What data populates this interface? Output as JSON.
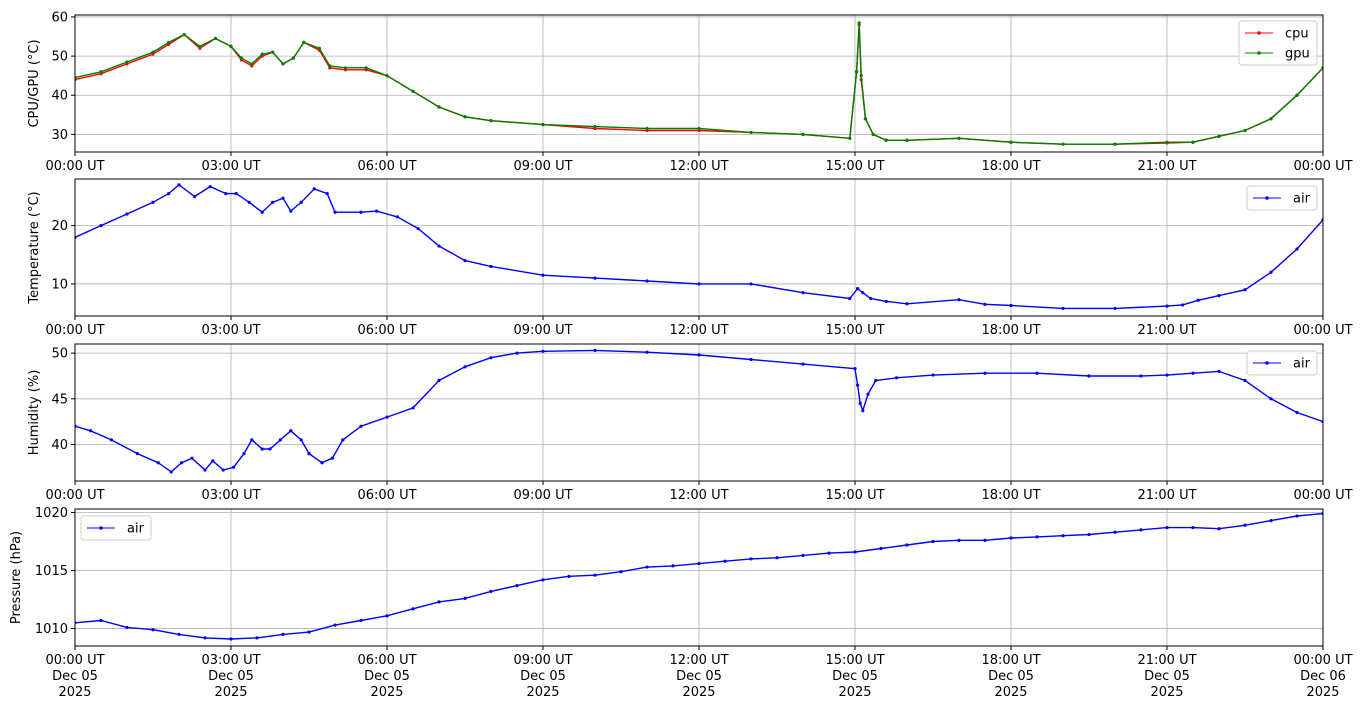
{
  "colors": {
    "cpu": "#ff0000",
    "gpu": "#008000",
    "air": "#0000ff",
    "grid": "#b0b0b0",
    "legend_border": "#cccccc"
  },
  "chart_data": [
    {
      "type": "line",
      "ylabel": "CPU/GPU (°C)",
      "xlim": [
        0,
        24
      ],
      "ylim": [
        25.5,
        60.5
      ],
      "yticks": [
        30,
        40,
        50,
        60
      ],
      "xtick_labels": [
        "00:00 UT",
        "03:00 UT",
        "06:00 UT",
        "09:00 UT",
        "12:00 UT",
        "15:00 UT",
        "18:00 UT",
        "21:00 UT",
        "00:00 UT"
      ],
      "grid": true,
      "legend": "top-right",
      "series": [
        {
          "name": "cpu",
          "color": "red",
          "x": [
            0,
            0.5,
            1,
            1.5,
            1.8,
            2.1,
            2.4,
            2.7,
            3.0,
            3.2,
            3.4,
            3.6,
            3.8,
            4.0,
            4.2,
            4.4,
            4.7,
            4.9,
            5.2,
            5.6,
            6.0,
            6.5,
            7.0,
            7.5,
            8.0,
            9.0,
            10.0,
            11.0,
            12.0,
            13.0,
            14.0,
            14.9,
            15.03,
            15.08,
            15.12,
            15.2,
            15.35,
            15.6,
            16.0,
            17.0,
            18.0,
            19.0,
            20.0,
            21.0,
            21.5,
            22.0,
            22.5,
            23.0,
            23.5,
            24.0
          ],
          "y": [
            44,
            45.5,
            48,
            50.5,
            53,
            55.5,
            52,
            54.5,
            52.5,
            49,
            47.5,
            50,
            51,
            48,
            49.5,
            53.5,
            51.5,
            47,
            46.5,
            46.5,
            45,
            41,
            37,
            34.5,
            33.5,
            32.5,
            31.5,
            31,
            31,
            30.5,
            30,
            29,
            46,
            58,
            44,
            34,
            30,
            28.5,
            28.5,
            29,
            28,
            27.5,
            27.5,
            27.8,
            28,
            29.5,
            31,
            34,
            40,
            47
          ]
        },
        {
          "name": "gpu",
          "color": "green",
          "x": [
            0,
            0.5,
            1,
            1.5,
            1.8,
            2.1,
            2.4,
            2.7,
            3.0,
            3.2,
            3.4,
            3.6,
            3.8,
            4.0,
            4.2,
            4.4,
            4.7,
            4.9,
            5.2,
            5.6,
            6.0,
            6.5,
            7.0,
            7.5,
            8.0,
            9.0,
            10.0,
            11.0,
            12.0,
            13.0,
            14.0,
            14.9,
            15.03,
            15.08,
            15.12,
            15.2,
            15.35,
            15.6,
            16.0,
            17.0,
            18.0,
            19.0,
            20.0,
            21.0,
            21.5,
            22.0,
            22.5,
            23.0,
            23.5,
            24.0
          ],
          "y": [
            44.5,
            46,
            48.5,
            51,
            53.5,
            55.5,
            52.5,
            54.5,
            52.5,
            49.5,
            48,
            50.5,
            51,
            48,
            49.5,
            53.5,
            52,
            47.5,
            47,
            47,
            45,
            41,
            37,
            34.5,
            33.5,
            32.5,
            32,
            31.5,
            31.5,
            30.5,
            30,
            29,
            46,
            58.5,
            45,
            34,
            30,
            28.5,
            28.5,
            29,
            28,
            27.5,
            27.5,
            28,
            28,
            29.5,
            31,
            34,
            40,
            47
          ]
        }
      ]
    },
    {
      "type": "line",
      "ylabel": "Temperature (°C)",
      "xlim": [
        0,
        24
      ],
      "ylim": [
        4.5,
        28
      ],
      "yticks": [
        10,
        20
      ],
      "xtick_labels": [
        "00:00 UT",
        "03:00 UT",
        "06:00 UT",
        "09:00 UT",
        "12:00 UT",
        "15:00 UT",
        "18:00 UT",
        "21:00 UT",
        "00:00 UT"
      ],
      "grid": true,
      "legend": "top-right",
      "series": [
        {
          "name": "air",
          "color": "blue",
          "x": [
            0,
            0.5,
            1.0,
            1.5,
            1.8,
            2.0,
            2.3,
            2.6,
            2.9,
            3.1,
            3.35,
            3.6,
            3.8,
            4.0,
            4.15,
            4.35,
            4.6,
            4.85,
            5.0,
            5.5,
            5.8,
            6.2,
            6.6,
            7.0,
            7.5,
            8.0,
            9.0,
            10.0,
            11.0,
            12.0,
            13.0,
            14.0,
            14.9,
            15.05,
            15.15,
            15.3,
            15.6,
            16.0,
            17.0,
            17.5,
            18.0,
            19.0,
            20.0,
            21.0,
            21.3,
            21.6,
            22.0,
            22.5,
            23.0,
            23.5,
            24.0
          ],
          "y": [
            18,
            20,
            22,
            24,
            25.5,
            27,
            25,
            26.7,
            25.5,
            25.5,
            24,
            22.3,
            24,
            24.7,
            22.5,
            24,
            26.3,
            25.5,
            22.3,
            22.3,
            22.5,
            21.5,
            19.5,
            16.5,
            14,
            13,
            11.5,
            11,
            10.5,
            10,
            10,
            8.5,
            7.5,
            9.2,
            8.5,
            7.5,
            7,
            6.6,
            7.3,
            6.5,
            6.3,
            5.8,
            5.8,
            6.2,
            6.4,
            7.2,
            8,
            9,
            12,
            16,
            21
          ]
        }
      ]
    },
    {
      "type": "line",
      "ylabel": "Humidity (%)",
      "xlim": [
        0,
        24
      ],
      "ylim": [
        36,
        51
      ],
      "yticks": [
        40,
        45,
        50
      ],
      "xtick_labels": [
        "00:00 UT",
        "03:00 UT",
        "06:00 UT",
        "09:00 UT",
        "12:00 UT",
        "15:00 UT",
        "18:00 UT",
        "21:00 UT",
        "00:00 UT"
      ],
      "grid": true,
      "legend": "top-right",
      "series": [
        {
          "name": "air",
          "color": "blue",
          "x": [
            0,
            0.3,
            0.7,
            1.2,
            1.6,
            1.85,
            2.05,
            2.25,
            2.5,
            2.65,
            2.85,
            3.05,
            3.25,
            3.4,
            3.6,
            3.75,
            3.95,
            4.15,
            4.35,
            4.5,
            4.75,
            4.95,
            5.15,
            5.5,
            6.0,
            6.5,
            7.0,
            7.5,
            8.0,
            8.5,
            9.0,
            10.0,
            11.0,
            12.0,
            13.0,
            14.0,
            15.0,
            15.05,
            15.1,
            15.15,
            15.25,
            15.4,
            15.8,
            16.5,
            17.5,
            18.5,
            19.5,
            20.5,
            21.0,
            21.5,
            22.0,
            22.5,
            23.0,
            23.5,
            24.0
          ],
          "y": [
            42,
            41.5,
            40.5,
            39,
            38,
            37,
            38,
            38.5,
            37.2,
            38.2,
            37.2,
            37.5,
            39,
            40.5,
            39.5,
            39.5,
            40.5,
            41.5,
            40.5,
            39,
            38,
            38.5,
            40.5,
            42,
            43,
            44,
            47,
            48.5,
            49.5,
            50,
            50.2,
            50.3,
            50.1,
            49.8,
            49.3,
            48.8,
            48.3,
            46.5,
            44.5,
            43.7,
            45.5,
            47,
            47.3,
            47.6,
            47.8,
            47.8,
            47.5,
            47.5,
            47.6,
            47.8,
            48,
            47,
            45,
            43.5,
            42.5
          ]
        }
      ]
    },
    {
      "type": "line",
      "ylabel": "Pressure (hPa)",
      "xlim": [
        0,
        24
      ],
      "ylim": [
        1008.5,
        1020.3
      ],
      "yticks": [
        1010,
        1015,
        1020
      ],
      "xtick_labels": [
        "00:00 UT\nDec 05\n2025",
        "03:00 UT\nDec 05\n2025",
        "06:00 UT\nDec 05\n2025",
        "09:00 UT\nDec 05\n2025",
        "12:00 UT\nDec 05\n2025",
        "15:00 UT\nDec 05\n2025",
        "18:00 UT\nDec 05\n2025",
        "21:00 UT\nDec 05\n2025",
        "00:00 UT\nDec 06\n2025"
      ],
      "grid": true,
      "legend": "top-left",
      "series": [
        {
          "name": "air",
          "color": "blue",
          "x": [
            0,
            0.5,
            1.0,
            1.5,
            2.0,
            2.5,
            3.0,
            3.5,
            4.0,
            4.5,
            5.0,
            5.5,
            6.0,
            6.5,
            7.0,
            7.5,
            8.0,
            8.5,
            9.0,
            9.5,
            10.0,
            10.5,
            11.0,
            11.5,
            12.0,
            12.5,
            13.0,
            13.5,
            14.0,
            14.5,
            15.0,
            15.5,
            16.0,
            16.5,
            17.0,
            17.5,
            18.0,
            18.5,
            19.0,
            19.5,
            20.0,
            20.5,
            21.0,
            21.5,
            22.0,
            22.5,
            23.0,
            23.5,
            24.0
          ],
          "y": [
            1010.5,
            1010.7,
            1010.1,
            1009.9,
            1009.5,
            1009.2,
            1009.1,
            1009.2,
            1009.5,
            1009.7,
            1010.3,
            1010.7,
            1011.1,
            1011.7,
            1012.3,
            1012.6,
            1013.2,
            1013.7,
            1014.2,
            1014.5,
            1014.6,
            1014.9,
            1015.3,
            1015.4,
            1015.6,
            1015.8,
            1016.0,
            1016.1,
            1016.3,
            1016.5,
            1016.6,
            1016.9,
            1017.2,
            1017.5,
            1017.6,
            1017.6,
            1017.8,
            1017.9,
            1018.0,
            1018.1,
            1018.3,
            1018.5,
            1018.7,
            1018.7,
            1018.6,
            1018.9,
            1019.3,
            1019.7,
            1019.9
          ]
        }
      ]
    }
  ]
}
